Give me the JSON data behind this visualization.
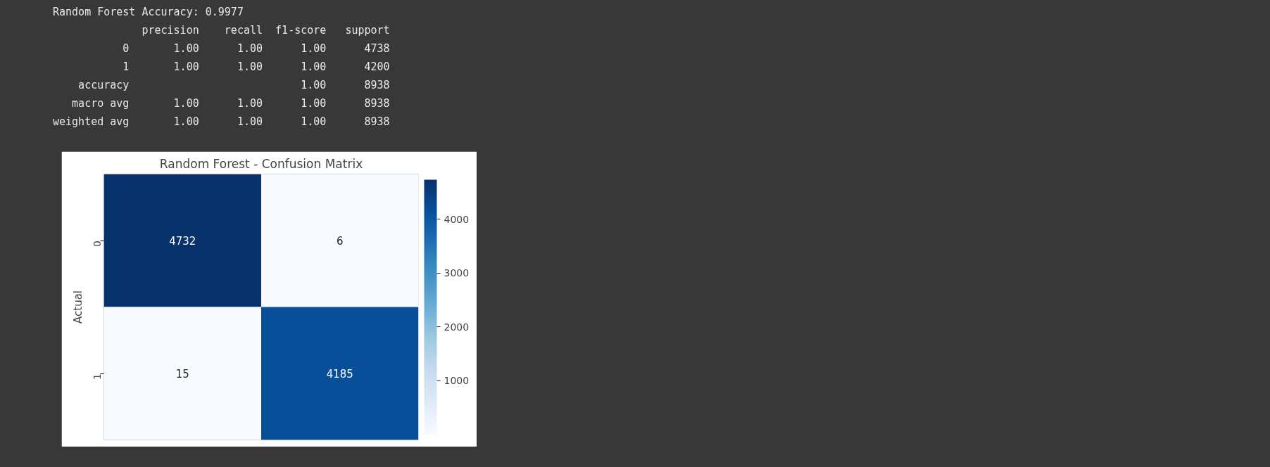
{
  "chart_data": {
    "type": "heatmap",
    "title": "Random Forest - Confusion Matrix",
    "ylabel": "Actual",
    "categories": [
      null,
      null
    ],
    "y_categories": [
      "0",
      "1"
    ],
    "cells": [
      [
        4732,
        6
      ],
      [
        15,
        4185
      ]
    ],
    "clim": [
      6,
      4732
    ],
    "cticks": [
      1000,
      2000,
      3000,
      4000
    ],
    "data_labels": true,
    "tick_labels": "y",
    "annotations": [
      "Random Forest Accuracy: 0.9977",
      "              precision    recall  f1-score   support",
      "           0       1.00      1.00      1.00      4738",
      "           1       1.00      1.00      1.00      4200",
      "    accuracy                           1.00      8938",
      "   macro avg       1.00      1.00      1.00      8938",
      "weighted avg       1.00      1.00      1.00      8938"
    ]
  }
}
